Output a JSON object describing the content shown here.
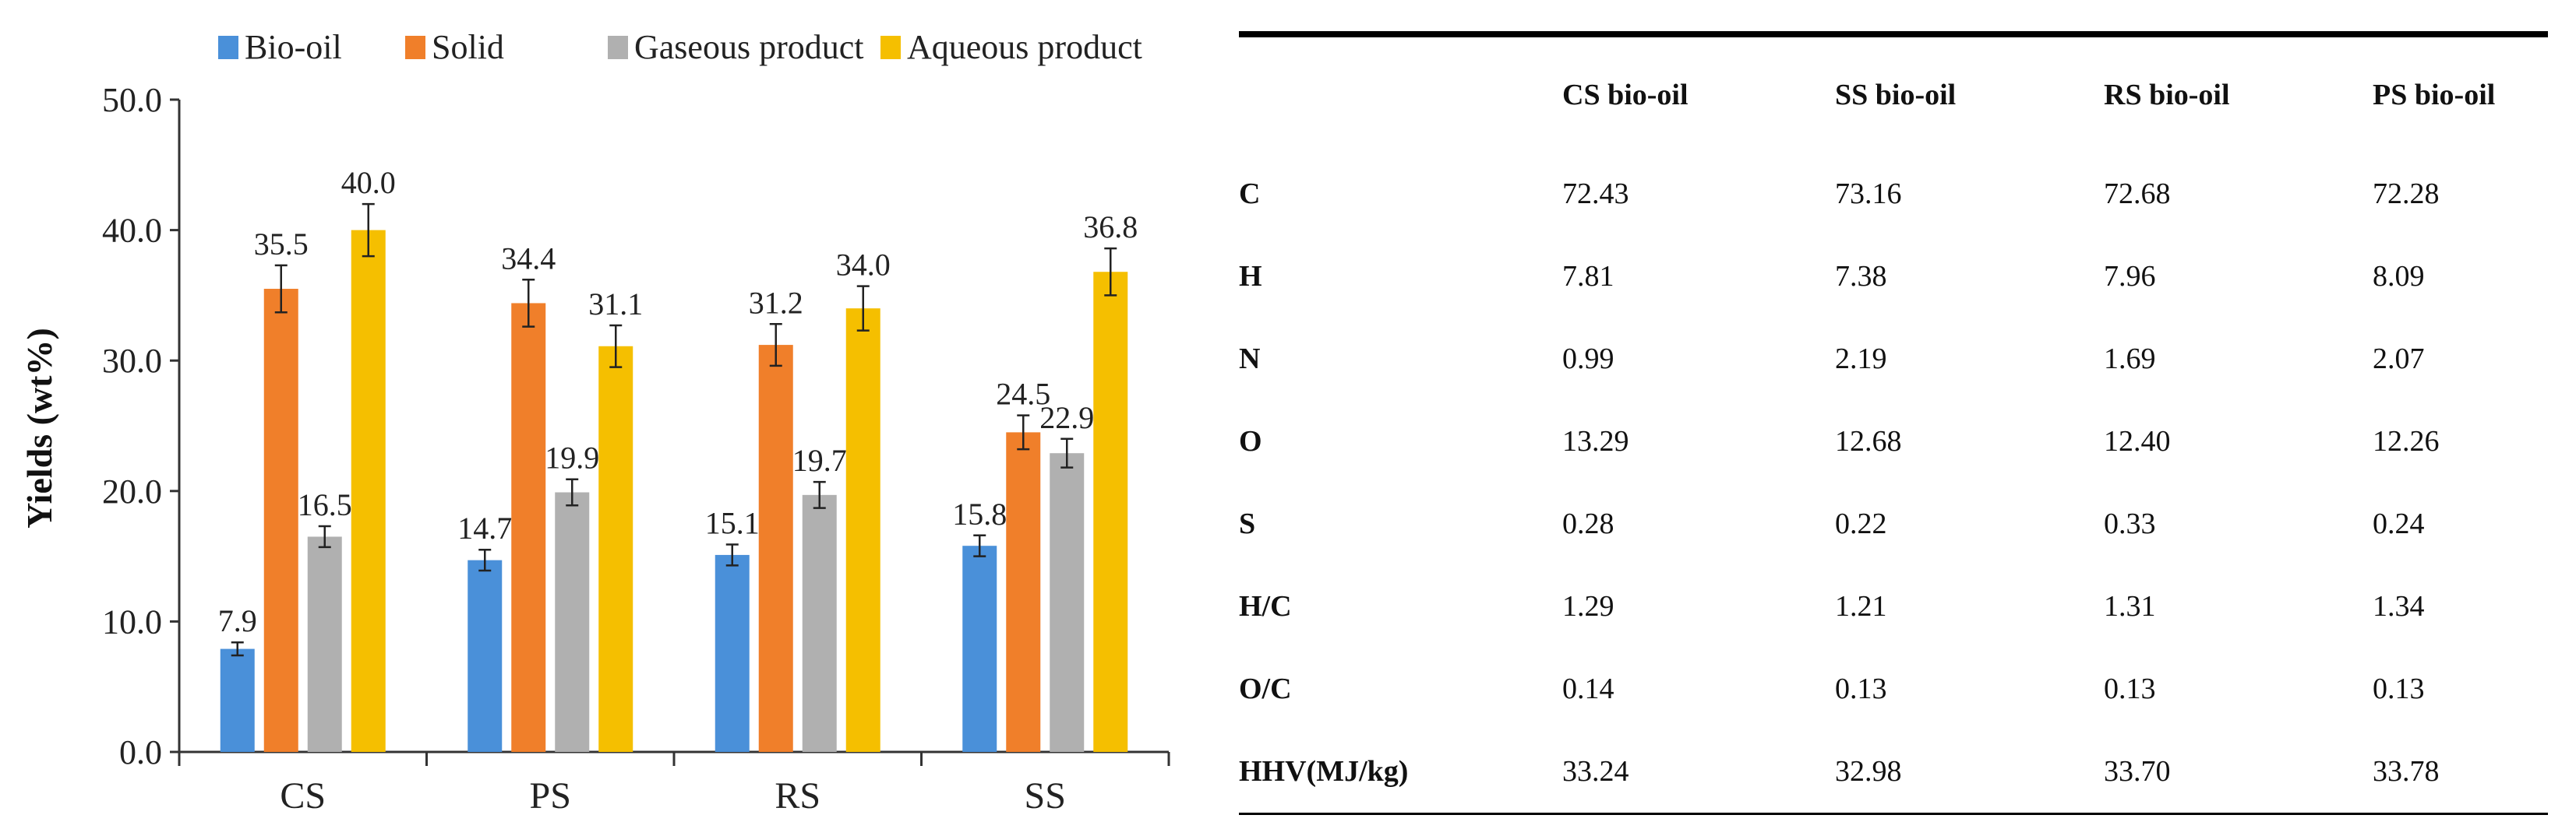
{
  "chart_data": {
    "type": "bar",
    "ylabel": "Yields (wt%)",
    "xlabel": "",
    "ylim": [
      0,
      50
    ],
    "yticks": [
      0,
      10,
      20,
      30,
      40,
      50
    ],
    "ytick_labels": [
      "0.0",
      "10.0",
      "20.0",
      "30.0",
      "40.0",
      "50.0"
    ],
    "categories": [
      "CS",
      "PS",
      "RS",
      "SS"
    ],
    "series": [
      {
        "name": "Bio-oil",
        "color": "#4a90d9",
        "values": [
          7.9,
          14.7,
          15.1,
          15.8
        ],
        "errors": [
          0.5,
          0.8,
          0.8,
          0.8
        ],
        "labels": [
          "7.9",
          "14.7",
          "15.1",
          "15.8"
        ]
      },
      {
        "name": "Solid",
        "color": "#f07f2a",
        "values": [
          35.5,
          34.4,
          31.2,
          24.5
        ],
        "errors": [
          1.8,
          1.8,
          1.6,
          1.3
        ],
        "labels": [
          "35.5",
          "34.4",
          "31.2",
          "24.5"
        ]
      },
      {
        "name": "Gaseous product",
        "color": "#b0b0b0",
        "values": [
          16.5,
          19.9,
          19.7,
          22.9
        ],
        "errors": [
          0.8,
          1.0,
          1.0,
          1.1
        ],
        "labels": [
          "16.5",
          "19.9",
          "19.7",
          "22.9"
        ]
      },
      {
        "name": "Aqueous product",
        "color": "#f5bf00",
        "values": [
          40.0,
          31.1,
          34.0,
          36.8
        ],
        "errors": [
          2.0,
          1.6,
          1.7,
          1.8
        ],
        "labels": [
          "40.0",
          "31.1",
          "34.0",
          "36.8"
        ]
      }
    ],
    "legend_position": "top"
  },
  "table": {
    "headers": [
      "",
      "CS bio-oil",
      "SS bio-oil",
      "RS bio-oil",
      "PS bio-oil"
    ],
    "rows": [
      [
        "C",
        "72.43",
        "73.16",
        "72.68",
        "72.28"
      ],
      [
        "H",
        "7.81",
        "7.38",
        "7.96",
        "8.09"
      ],
      [
        "N",
        "0.99",
        "2.19",
        "1.69",
        "2.07"
      ],
      [
        "O",
        "13.29",
        "12.68",
        "12.40",
        "12.26"
      ],
      [
        "S",
        "0.28",
        "0.22",
        "0.33",
        "0.24"
      ],
      [
        "H/C",
        "1.29",
        "1.21",
        "1.31",
        "1.34"
      ],
      [
        "O/C",
        "0.14",
        "0.13",
        "0.13",
        "0.13"
      ],
      [
        "HHV(MJ/kg)",
        "33.24",
        "32.98",
        "33.70",
        "33.78"
      ]
    ]
  }
}
